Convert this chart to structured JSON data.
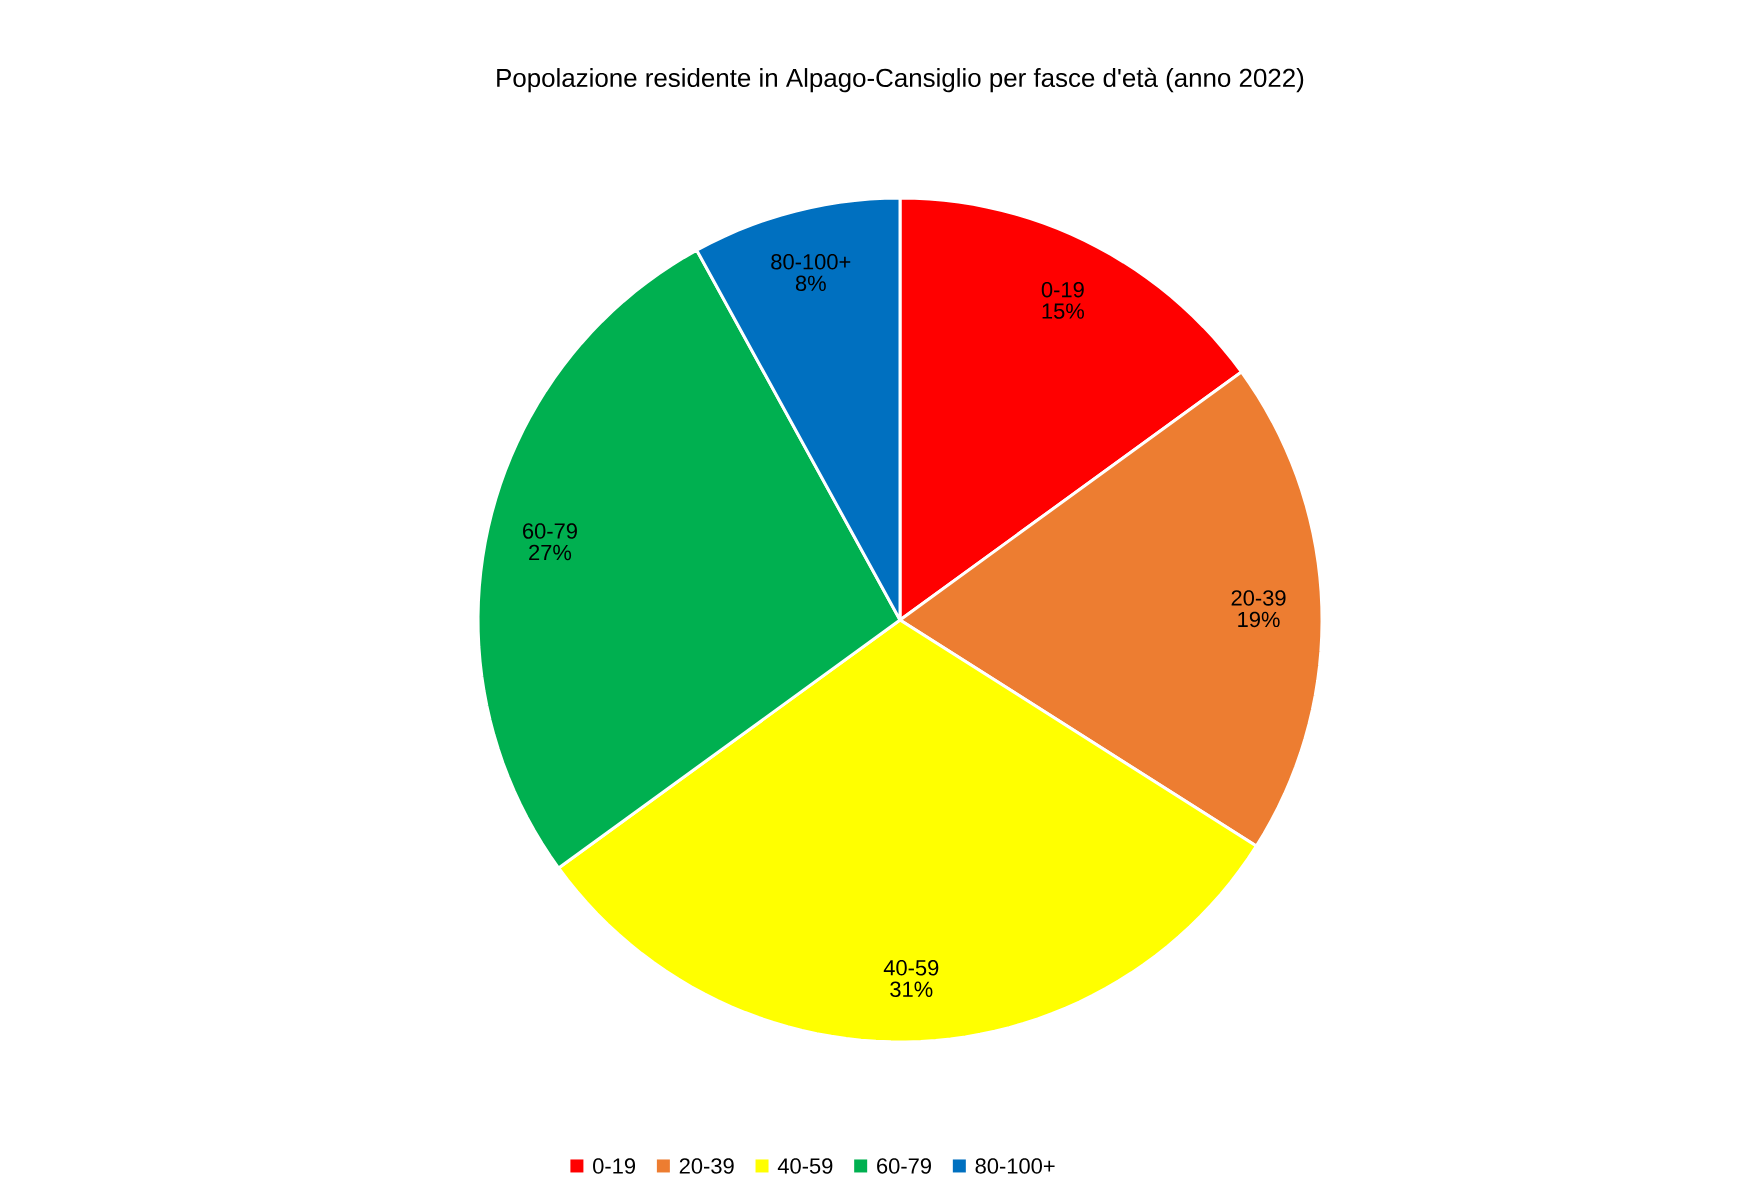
{
  "chart_data": {
    "type": "pie",
    "title": "Popolazione residente in Alpago-Cansiglio per fasce d'età (anno 2022)",
    "categories": [
      "0-19",
      "20-39",
      "40-59",
      "60-79",
      "80-100+"
    ],
    "values": [
      15,
      19,
      31,
      27,
      8
    ],
    "value_labels": [
      "15%",
      "19%",
      "31%",
      "27%",
      "8%"
    ],
    "colors": [
      "#ff0000",
      "#ed7d31",
      "#ffff00",
      "#00b050",
      "#0070c0"
    ],
    "legend": "bottom"
  }
}
